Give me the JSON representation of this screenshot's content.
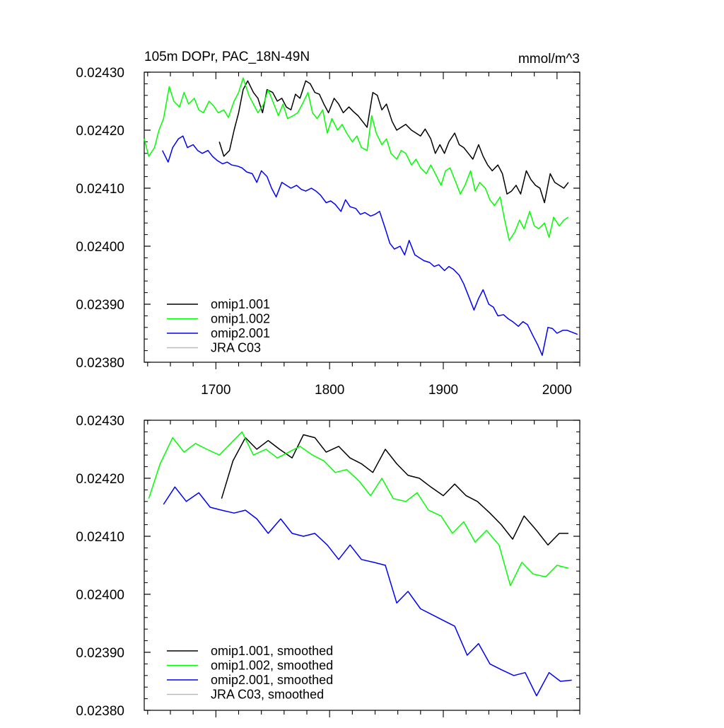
{
  "chart_data": [
    {
      "type": "line",
      "title": "105m DOPr, PAC_18N-49N",
      "units": "mmol/m^3",
      "xlabel": "",
      "ylabel": "",
      "xlim": [
        1637,
        2020
      ],
      "ylim": [
        0.0238,
        0.0243
      ],
      "x_ticks": [
        1700,
        1800,
        1900,
        2000
      ],
      "y_ticks": [
        0.0238,
        0.0239,
        0.024,
        0.0241,
        0.0242,
        0.0243
      ],
      "y_tick_labels": [
        "0.02380",
        "0.02390",
        "0.02400",
        "0.02410",
        "0.02420",
        "0.02430"
      ],
      "grid": false,
      "legend_position": "bottom-left",
      "series": [
        {
          "name": "omip1.001",
          "color": "#000000",
          "x": [
            1703,
            1707,
            1712,
            1716,
            1720,
            1724,
            1728,
            1733,
            1737,
            1741,
            1745,
            1750,
            1754,
            1758,
            1762,
            1766,
            1770,
            1774,
            1779,
            1783,
            1787,
            1791,
            1795,
            1799,
            1804,
            1808,
            1812,
            1817,
            1821,
            1825,
            1829,
            1833,
            1838,
            1842,
            1846,
            1850,
            1855,
            1859,
            1863,
            1867,
            1872,
            1876,
            1880,
            1884,
            1889,
            1893,
            1897,
            1901,
            1905,
            1910,
            1914,
            1918,
            1922,
            1926,
            1931,
            1935,
            1939,
            1943,
            1948,
            1952,
            1956,
            1960,
            1964,
            1968,
            1973,
            1977,
            1981,
            1985,
            1989,
            1994,
            1998,
            2002,
            2006,
            2010
          ],
          "values": [
            0.02418,
            0.024155,
            0.024165,
            0.0242,
            0.02423,
            0.02427,
            0.024285,
            0.024265,
            0.024255,
            0.02423,
            0.02427,
            0.024265,
            0.02425,
            0.024255,
            0.02424,
            0.024235,
            0.024262,
            0.024255,
            0.024285,
            0.02428,
            0.024265,
            0.024262,
            0.024245,
            0.02423,
            0.024255,
            0.024245,
            0.02423,
            0.02424,
            0.024232,
            0.024225,
            0.024215,
            0.024205,
            0.024265,
            0.02426,
            0.024235,
            0.024245,
            0.024215,
            0.0242,
            0.024205,
            0.02421,
            0.0242,
            0.024195,
            0.02419,
            0.024202,
            0.024185,
            0.02416,
            0.024175,
            0.02416,
            0.02418,
            0.024195,
            0.024175,
            0.02417,
            0.02416,
            0.02415,
            0.024175,
            0.024155,
            0.02414,
            0.02413,
            0.02414,
            0.024125,
            0.02409,
            0.024095,
            0.024105,
            0.02409,
            0.02413,
            0.024115,
            0.024105,
            0.0241,
            0.024075,
            0.024125,
            0.02411,
            0.024105,
            0.0241,
            0.02411
          ]
        },
        {
          "name": "omip1.002",
          "color": "#00ff00",
          "x": [
            1637,
            1641,
            1646,
            1650,
            1654,
            1659,
            1663,
            1668,
            1672,
            1676,
            1681,
            1685,
            1689,
            1694,
            1698,
            1702,
            1707,
            1711,
            1716,
            1720,
            1724,
            1729,
            1733,
            1737,
            1742,
            1746,
            1750,
            1755,
            1759,
            1763,
            1768,
            1772,
            1776,
            1781,
            1785,
            1789,
            1794,
            1798,
            1802,
            1807,
            1811,
            1815,
            1820,
            1824,
            1828,
            1833,
            1837,
            1841,
            1846,
            1850,
            1854,
            1859,
            1863,
            1867,
            1872,
            1876,
            1880,
            1885,
            1889,
            1893,
            1898,
            1902,
            1906,
            1911,
            1915,
            1919,
            1924,
            1928,
            1932,
            1937,
            1941,
            1945,
            1950,
            1954,
            1958,
            1963,
            1967,
            1971,
            1976,
            1980,
            1984,
            1989,
            1993,
            1997,
            2002,
            2006,
            2010
          ],
          "values": [
            0.024185,
            0.024155,
            0.02417,
            0.0242,
            0.02422,
            0.024275,
            0.02425,
            0.02424,
            0.024265,
            0.024245,
            0.024255,
            0.024235,
            0.02423,
            0.02425,
            0.024242,
            0.02423,
            0.024235,
            0.024222,
            0.02425,
            0.024265,
            0.02429,
            0.02426,
            0.024245,
            0.02423,
            0.024245,
            0.02427,
            0.02425,
            0.024225,
            0.024245,
            0.02422,
            0.024225,
            0.02423,
            0.024245,
            0.024265,
            0.02423,
            0.02422,
            0.024235,
            0.024195,
            0.02422,
            0.0242,
            0.02421,
            0.024195,
            0.02418,
            0.02419,
            0.02417,
            0.024165,
            0.024225,
            0.024195,
            0.024175,
            0.024185,
            0.02416,
            0.02415,
            0.024165,
            0.02416,
            0.02414,
            0.02415,
            0.024135,
            0.024125,
            0.02414,
            0.024125,
            0.024105,
            0.02413,
            0.024135,
            0.02411,
            0.02409,
            0.024105,
            0.02413,
            0.024095,
            0.02411,
            0.0241,
            0.02408,
            0.02407,
            0.024085,
            0.024045,
            0.02401,
            0.024025,
            0.024045,
            0.02403,
            0.02406,
            0.024035,
            0.02403,
            0.02404,
            0.024015,
            0.02405,
            0.024035,
            0.024045,
            0.02405
          ]
        },
        {
          "name": "omip2.001",
          "color": "#0000ff",
          "x": [
            1653,
            1658,
            1662,
            1667,
            1671,
            1675,
            1680,
            1684,
            1688,
            1693,
            1697,
            1701,
            1706,
            1710,
            1714,
            1719,
            1723,
            1727,
            1732,
            1736,
            1740,
            1745,
            1749,
            1753,
            1758,
            1762,
            1766,
            1771,
            1775,
            1779,
            1784,
            1788,
            1792,
            1797,
            1801,
            1805,
            1810,
            1814,
            1818,
            1823,
            1827,
            1831,
            1836,
            1840,
            1844,
            1849,
            1853,
            1857,
            1862,
            1866,
            1870,
            1875,
            1879,
            1883,
            1888,
            1892,
            1896,
            1901,
            1905,
            1909,
            1914,
            1918,
            1922,
            1927,
            1931,
            1935,
            1940,
            1944,
            1948,
            1953,
            1957,
            1961,
            1966,
            1970,
            1974,
            1979,
            1983,
            1987,
            1992,
            1996,
            2000,
            2005,
            2009,
            2013,
            2018
          ],
          "values": [
            0.024165,
            0.024145,
            0.02417,
            0.024185,
            0.02419,
            0.02417,
            0.024175,
            0.024165,
            0.02416,
            0.024165,
            0.024155,
            0.024148,
            0.024142,
            0.024145,
            0.02414,
            0.024138,
            0.024135,
            0.024128,
            0.024125,
            0.02411,
            0.02413,
            0.02412,
            0.0241,
            0.024085,
            0.02411,
            0.024105,
            0.0241,
            0.024105,
            0.024098,
            0.024095,
            0.0241,
            0.024095,
            0.024088,
            0.024075,
            0.024078,
            0.024072,
            0.02406,
            0.02408,
            0.024068,
            0.024065,
            0.024055,
            0.024058,
            0.024052,
            0.024055,
            0.02406,
            0.02403,
            0.024005,
            0.023995,
            0.024,
            0.023985,
            0.02401,
            0.023985,
            0.02398,
            0.023975,
            0.023972,
            0.023965,
            0.023968,
            0.023958,
            0.023965,
            0.02396,
            0.02395,
            0.023935,
            0.023915,
            0.02389,
            0.02391,
            0.023925,
            0.0239,
            0.023895,
            0.02388,
            0.023882,
            0.023875,
            0.02387,
            0.023862,
            0.02387,
            0.023865,
            0.023845,
            0.02383,
            0.023812,
            0.02386,
            0.023858,
            0.02385,
            0.023855,
            0.023855,
            0.023852,
            0.023848
          ]
        },
        {
          "name": "JRA C03",
          "color": "#bbbbbb",
          "x": [],
          "values": []
        }
      ]
    },
    {
      "type": "line",
      "title": "",
      "xlabel": "",
      "ylabel": "",
      "xlim": [
        1637,
        2020
      ],
      "ylim": [
        0.0238,
        0.0243
      ],
      "x_ticks": [
        1700,
        1800,
        1900,
        2000
      ],
      "y_ticks": [
        0.0238,
        0.0239,
        0.024,
        0.0241,
        0.0242,
        0.0243
      ],
      "y_tick_labels": [
        "0.02380",
        "0.02390",
        "0.02400",
        "0.02410",
        "0.02420",
        "0.02430"
      ],
      "grid": false,
      "legend_position": "bottom-left",
      "series": [
        {
          "name": "omip1.001, smoothed",
          "color": "#000000",
          "x": [
            1705,
            1715,
            1726,
            1736,
            1746,
            1756,
            1767,
            1777,
            1787,
            1797,
            1808,
            1818,
            1828,
            1838,
            1849,
            1859,
            1869,
            1879,
            1889,
            1900,
            1910,
            1920,
            1930,
            1941,
            1951,
            1961,
            1971,
            1982,
            1992,
            2002,
            2010
          ],
          "values": [
            0.024165,
            0.02423,
            0.02427,
            0.02425,
            0.024265,
            0.02425,
            0.024235,
            0.024275,
            0.02427,
            0.024245,
            0.024255,
            0.024235,
            0.024225,
            0.02421,
            0.02425,
            0.024225,
            0.024205,
            0.0242,
            0.024185,
            0.02417,
            0.02419,
            0.02417,
            0.02416,
            0.02414,
            0.02412,
            0.024095,
            0.024135,
            0.02411,
            0.024085,
            0.024105,
            0.024105
          ]
        },
        {
          "name": "omip1.002, smoothed",
          "color": "#00ff00",
          "x": [
            1641,
            1651,
            1662,
            1672,
            1682,
            1692,
            1703,
            1713,
            1723,
            1733,
            1744,
            1754,
            1764,
            1774,
            1785,
            1795,
            1805,
            1815,
            1826,
            1836,
            1846,
            1856,
            1867,
            1877,
            1887,
            1898,
            1908,
            1918,
            1928,
            1938,
            1949,
            1959,
            1969,
            1979,
            1990,
            2000,
            2010
          ],
          "values": [
            0.024165,
            0.024225,
            0.02427,
            0.024245,
            0.02426,
            0.02425,
            0.02424,
            0.02426,
            0.02428,
            0.02424,
            0.02425,
            0.024235,
            0.024245,
            0.024255,
            0.02424,
            0.02423,
            0.02421,
            0.024215,
            0.024195,
            0.02417,
            0.0242,
            0.024165,
            0.02416,
            0.024175,
            0.024145,
            0.024135,
            0.024105,
            0.024125,
            0.02409,
            0.02411,
            0.024085,
            0.024015,
            0.024055,
            0.024035,
            0.02403,
            0.02405,
            0.024045
          ]
        },
        {
          "name": "omip2.001, smoothed",
          "color": "#0000ff",
          "x": [
            1654,
            1664,
            1674,
            1685,
            1695,
            1705,
            1716,
            1726,
            1736,
            1746,
            1757,
            1767,
            1777,
            1787,
            1798,
            1808,
            1818,
            1828,
            1839,
            1849,
            1859,
            1869,
            1880,
            1890,
            1900,
            1910,
            1921,
            1931,
            1941,
            1951,
            1962,
            1972,
            1982,
            1993,
            2003,
            2013
          ],
          "values": [
            0.024155,
            0.024185,
            0.02416,
            0.024175,
            0.02415,
            0.024145,
            0.02414,
            0.024145,
            0.02413,
            0.024105,
            0.02413,
            0.024105,
            0.0241,
            0.024105,
            0.024085,
            0.02406,
            0.024085,
            0.02406,
            0.024055,
            0.02405,
            0.023985,
            0.024005,
            0.023975,
            0.023965,
            0.023955,
            0.023945,
            0.023895,
            0.023915,
            0.02388,
            0.02387,
            0.02386,
            0.023865,
            0.023825,
            0.023865,
            0.02385,
            0.023852
          ]
        },
        {
          "name": "JRA C03, smoothed",
          "color": "#bbbbbb",
          "x": [],
          "values": []
        }
      ]
    }
  ]
}
